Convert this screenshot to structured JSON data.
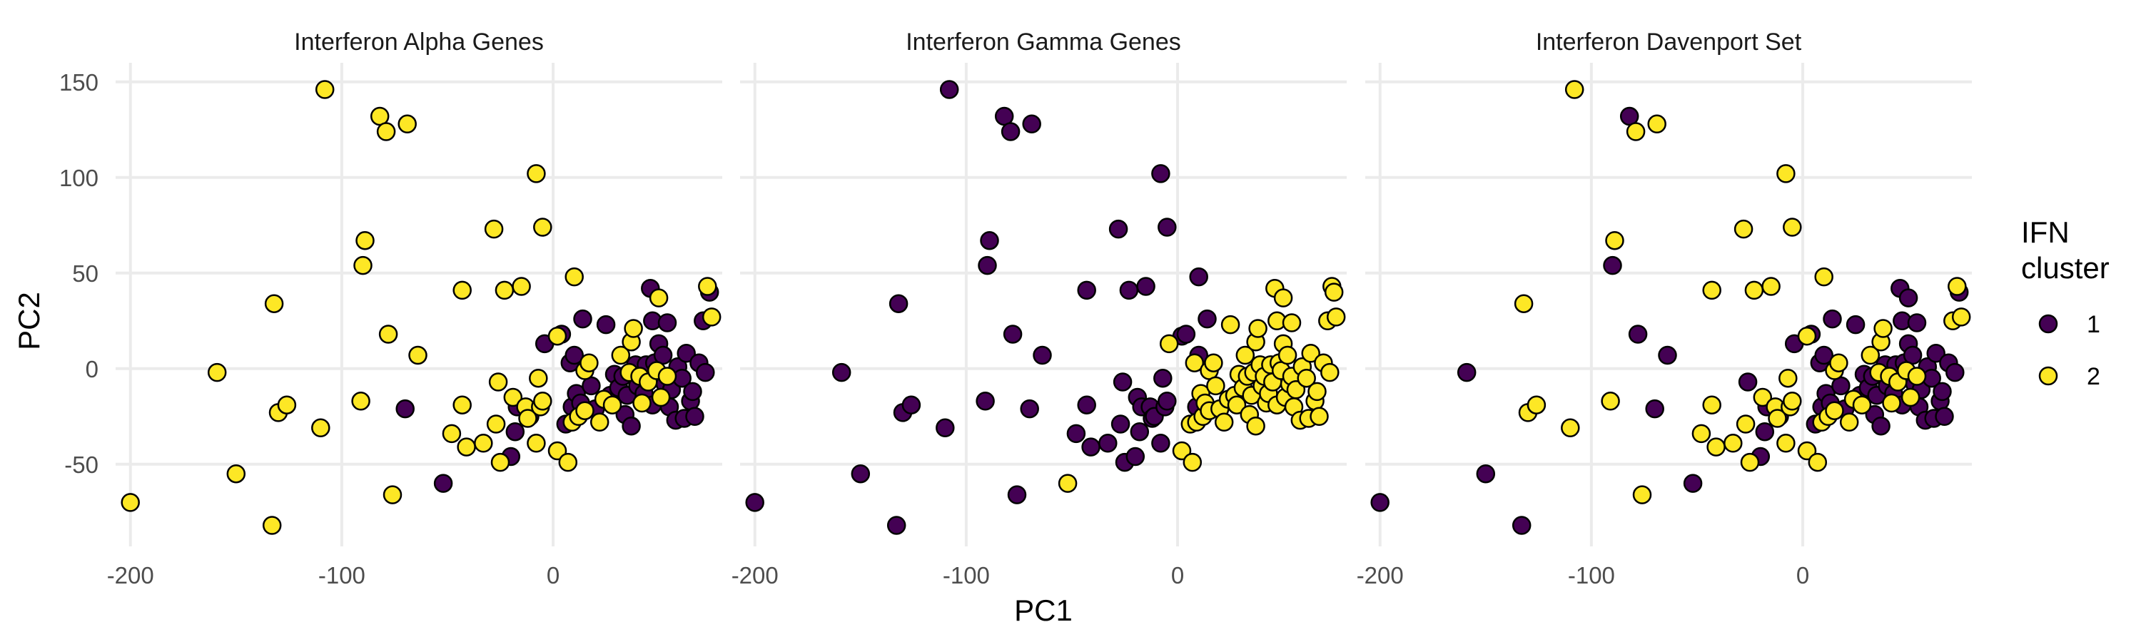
{
  "chart_data": {
    "type": "scatter",
    "xlabel": "PC1",
    "ylabel": "PC2",
    "xlim": [
      -207,
      80
    ],
    "ylim": [
      -93,
      160
    ],
    "xticks": [
      -200,
      -100,
      0
    ],
    "yticks": [
      -50,
      0,
      50,
      100,
      150
    ],
    "grid": true,
    "legend": {
      "title": [
        "IFN",
        "cluster"
      ],
      "position": "right",
      "entries": [
        {
          "label": "1",
          "color": "#440154"
        },
        {
          "label": "2",
          "color": "#FDE725"
        }
      ]
    },
    "colors": {
      "1": "#440154",
      "2": "#FDE725"
    },
    "panels": [
      {
        "title": "Interferon Alpha Genes"
      },
      {
        "title": "Interferon Gamma Genes"
      },
      {
        "title": "Interferon Davenport Set"
      }
    ],
    "points": [
      [
        -200,
        -70,
        2,
        1,
        1
      ],
      [
        -159,
        -2,
        2,
        1,
        1
      ],
      [
        -150,
        -55,
        2,
        1,
        1
      ],
      [
        -133,
        -82,
        2,
        1,
        1
      ],
      [
        -132,
        34,
        2,
        1,
        2
      ],
      [
        -130,
        -23,
        2,
        1,
        2
      ],
      [
        -126,
        -19,
        2,
        1,
        2
      ],
      [
        -110,
        -31,
        2,
        1,
        2
      ],
      [
        -108,
        146,
        2,
        1,
        2
      ],
      [
        -91,
        -17,
        2,
        1,
        2
      ],
      [
        -90,
        54,
        2,
        1,
        1
      ],
      [
        -89,
        67,
        2,
        1,
        2
      ],
      [
        -82,
        132,
        2,
        1,
        1
      ],
      [
        -79,
        124,
        2,
        1,
        2
      ],
      [
        -78,
        18,
        2,
        1,
        1
      ],
      [
        -76,
        -66,
        2,
        1,
        2
      ],
      [
        -69,
        128,
        2,
        1,
        2
      ],
      [
        -70,
        -21,
        1,
        1,
        1
      ],
      [
        -64,
        7,
        2,
        1,
        1
      ],
      [
        -52,
        -60,
        1,
        2,
        1
      ],
      [
        -48,
        -34,
        2,
        1,
        2
      ],
      [
        -43,
        41,
        2,
        1,
        2
      ],
      [
        -43,
        -19,
        2,
        1,
        2
      ],
      [
        -41,
        -41,
        2,
        1,
        2
      ],
      [
        -33,
        -39,
        2,
        1,
        2
      ],
      [
        -28,
        73,
        2,
        1,
        2
      ],
      [
        -27,
        -29,
        2,
        1,
        2
      ],
      [
        -26,
        -7,
        2,
        1,
        1
      ],
      [
        -25,
        -49,
        2,
        1,
        2
      ],
      [
        -23,
        41,
        2,
        1,
        2
      ],
      [
        -20,
        -46,
        1,
        1,
        1
      ],
      [
        -19,
        -15,
        2,
        1,
        2
      ],
      [
        -18,
        -33,
        1,
        1,
        1
      ],
      [
        -17,
        -20,
        1,
        1,
        1
      ],
      [
        -15,
        43,
        2,
        1,
        2
      ],
      [
        -13,
        -20,
        2,
        1,
        2
      ],
      [
        -12,
        -26,
        2,
        1,
        2
      ],
      [
        -11,
        -25,
        1,
        1,
        1
      ],
      [
        -8,
        102,
        2,
        1,
        2
      ],
      [
        -8,
        -39,
        2,
        1,
        2
      ],
      [
        -7,
        -5,
        2,
        1,
        2
      ],
      [
        -6,
        -20,
        2,
        1,
        2
      ],
      [
        -5,
        -17,
        2,
        1,
        2
      ],
      [
        -5,
        74,
        2,
        1,
        2
      ],
      [
        -4,
        13,
        1,
        2,
        1
      ],
      [
        2,
        -43,
        2,
        2,
        2
      ],
      [
        2,
        17,
        2,
        1,
        2
      ],
      [
        4,
        18,
        1,
        1,
        1
      ],
      [
        6,
        -29,
        1,
        2,
        1
      ],
      [
        7,
        -49,
        2,
        2,
        2
      ],
      [
        8,
        3,
        1,
        2,
        1
      ],
      [
        9,
        -28,
        2,
        2,
        2
      ],
      [
        9,
        -20,
        1,
        1,
        1
      ],
      [
        10,
        48,
        2,
        1,
        2
      ],
      [
        10,
        7,
        1,
        1,
        1
      ],
      [
        11,
        -13,
        1,
        2,
        1
      ],
      [
        12,
        -25,
        2,
        2,
        2
      ],
      [
        13,
        -18,
        1,
        2,
        1
      ],
      [
        14,
        26,
        1,
        1,
        1
      ],
      [
        15,
        -22,
        2,
        2,
        2
      ],
      [
        15,
        -1,
        2,
        2,
        2
      ],
      [
        17,
        3,
        2,
        2,
        2
      ],
      [
        18,
        -9,
        1,
        2,
        1
      ],
      [
        20,
        -21,
        1,
        2,
        1
      ],
      [
        22,
        -28,
        2,
        2,
        2
      ],
      [
        24,
        -16,
        2,
        2,
        2
      ],
      [
        25,
        23,
        1,
        2,
        1
      ],
      [
        27,
        -14,
        1,
        2,
        1
      ],
      [
        28,
        -19,
        2,
        2,
        2
      ],
      [
        29,
        -3,
        1,
        2,
        1
      ],
      [
        31,
        -10,
        1,
        2,
        1
      ],
      [
        32,
        7,
        2,
        2,
        2
      ],
      [
        33,
        -4,
        1,
        2,
        1
      ],
      [
        34,
        -24,
        1,
        2,
        1
      ],
      [
        35,
        -14,
        1,
        2,
        1
      ],
      [
        36,
        -2,
        2,
        2,
        2
      ],
      [
        37,
        14,
        2,
        2,
        2
      ],
      [
        37,
        -30,
        1,
        2,
        1
      ],
      [
        38,
        21,
        2,
        2,
        2
      ],
      [
        39,
        2,
        1,
        2,
        1
      ],
      [
        40,
        -9,
        1,
        2,
        1
      ],
      [
        41,
        -4,
        2,
        2,
        2
      ],
      [
        42,
        -18,
        2,
        2,
        2
      ],
      [
        43,
        -13,
        1,
        2,
        1
      ],
      [
        44,
        2,
        1,
        2,
        1
      ],
      [
        45,
        -7,
        2,
        2,
        2
      ],
      [
        46,
        42,
        1,
        2,
        1
      ],
      [
        47,
        25,
        1,
        2,
        1
      ],
      [
        47,
        -19,
        1,
        2,
        1
      ],
      [
        48,
        3,
        1,
        2,
        1
      ],
      [
        49,
        -1,
        2,
        2,
        2
      ],
      [
        50,
        37,
        2,
        2,
        1
      ],
      [
        50,
        13,
        1,
        2,
        1
      ],
      [
        51,
        -15,
        2,
        2,
        2
      ],
      [
        52,
        7,
        1,
        2,
        1
      ],
      [
        53,
        -8,
        1,
        2,
        1
      ],
      [
        54,
        24,
        1,
        2,
        1
      ],
      [
        54,
        -4,
        2,
        2,
        2
      ],
      [
        55,
        -20,
        1,
        2,
        1
      ],
      [
        56,
        -11,
        1,
        2,
        1
      ],
      [
        58,
        -27,
        1,
        2,
        1
      ],
      [
        59,
        1,
        1,
        2,
        1
      ],
      [
        61,
        -5,
        1,
        2,
        1
      ],
      [
        62,
        -26,
        1,
        2,
        1
      ],
      [
        63,
        8,
        1,
        2,
        1
      ],
      [
        65,
        -17,
        1,
        2,
        1
      ],
      [
        66,
        -12,
        1,
        2,
        1
      ],
      [
        67,
        -25,
        1,
        2,
        1
      ],
      [
        69,
        3,
        1,
        2,
        1
      ],
      [
        71,
        25,
        1,
        2,
        2
      ],
      [
        72,
        -2,
        1,
        2,
        1
      ],
      [
        73,
        43,
        2,
        2,
        2
      ],
      [
        74,
        40,
        1,
        2,
        1
      ],
      [
        75,
        27,
        2,
        2,
        2
      ]
    ]
  }
}
